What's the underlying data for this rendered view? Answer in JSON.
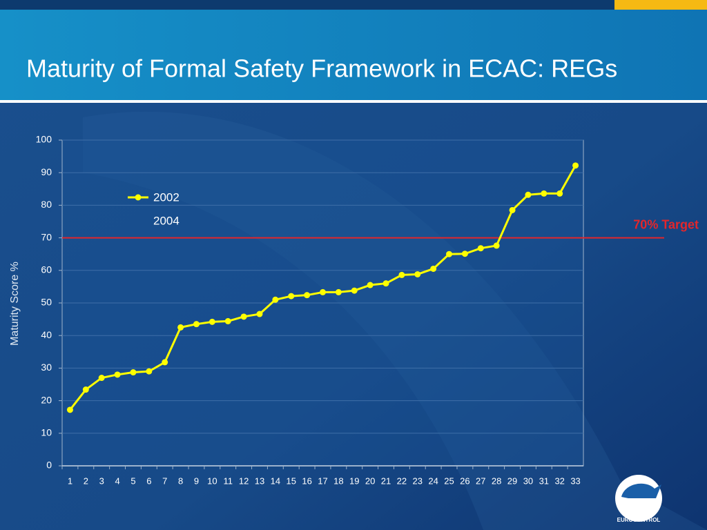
{
  "chart_data": {
    "type": "line",
    "title": "Maturity of Formal Safety Framework in ECAC:  REGs",
    "y_label": "Maturity Score %",
    "categories": [
      "1",
      "2",
      "3",
      "4",
      "5",
      "6",
      "7",
      "8",
      "9",
      "10",
      "11",
      "12",
      "13",
      "14",
      "15",
      "16",
      "17",
      "18",
      "19",
      "20",
      "21",
      "22",
      "23",
      "24",
      "25",
      "26",
      "27",
      "28",
      "29",
      "30",
      "31",
      "32",
      "33"
    ],
    "series": [
      {
        "name": "2002",
        "color": "#ffff00",
        "values": [
          17.2,
          23.4,
          27,
          28,
          28.7,
          29,
          31.8,
          42.5,
          43.5,
          44.2,
          44.4,
          45.8,
          46.6,
          51,
          52.1,
          52.4,
          53.3,
          53.3,
          53.8,
          55.5,
          56,
          58.6,
          58.8,
          60.5,
          65,
          65.1,
          66.8,
          67.6,
          78.5,
          83.2,
          83.6,
          83.6,
          92.2
        ]
      },
      {
        "name": "2004",
        "values": [
          null,
          null,
          null,
          null,
          null,
          null,
          null,
          null,
          null,
          null,
          null,
          null,
          null,
          null,
          null,
          null,
          null,
          null,
          null,
          null,
          null,
          null,
          null,
          null,
          null,
          null,
          null,
          null,
          null,
          null,
          null,
          null,
          null
        ]
      }
    ],
    "ylim": [
      0,
      100
    ],
    "yticks": [
      0,
      10,
      20,
      30,
      40,
      50,
      60,
      70,
      80,
      90,
      100
    ],
    "grid": true,
    "target": {
      "value": 70,
      "label": "70% Target",
      "color": "#e3262b"
    },
    "logo_text": "EUROCONTROL"
  }
}
